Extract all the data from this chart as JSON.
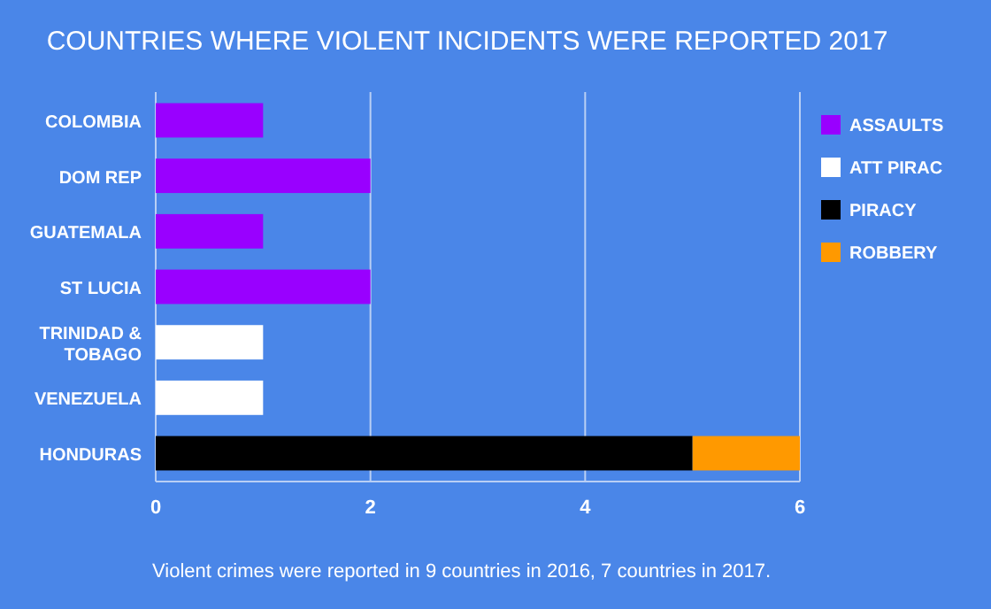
{
  "chart_data": {
    "type": "bar",
    "orientation": "horizontal",
    "stacked": true,
    "title": "COUNTRIES WHERE VIOLENT INCIDENTS WERE REPORTED 2017",
    "categories": [
      "COLOMBIA",
      "DOM REP",
      "GUATEMALA",
      "ST LUCIA",
      "TRINIDAD & TOBAGO",
      "VENEZUELA",
      "HONDURAS"
    ],
    "series": [
      {
        "name": "ASSAULTS",
        "color": "#9900ff",
        "values": [
          1,
          2,
          1,
          2,
          null,
          null,
          null
        ]
      },
      {
        "name": "ATT PIRAC",
        "color": "#ffffff",
        "values": [
          null,
          null,
          null,
          null,
          1,
          1,
          null
        ]
      },
      {
        "name": "PIRACY",
        "color": "#000000",
        "values": [
          null,
          null,
          null,
          null,
          null,
          null,
          5
        ]
      },
      {
        "name": "ROBBERY",
        "color": "#ff9900",
        "values": [
          null,
          null,
          null,
          null,
          null,
          null,
          1
        ]
      }
    ],
    "xlim": [
      0,
      6
    ],
    "xticks": [
      0,
      2,
      4,
      6
    ],
    "grid": "x",
    "legend": "top right",
    "annotations": [
      "Violent crimes were reported in 9 countries in 2016, 7 countries in 2017."
    ]
  }
}
